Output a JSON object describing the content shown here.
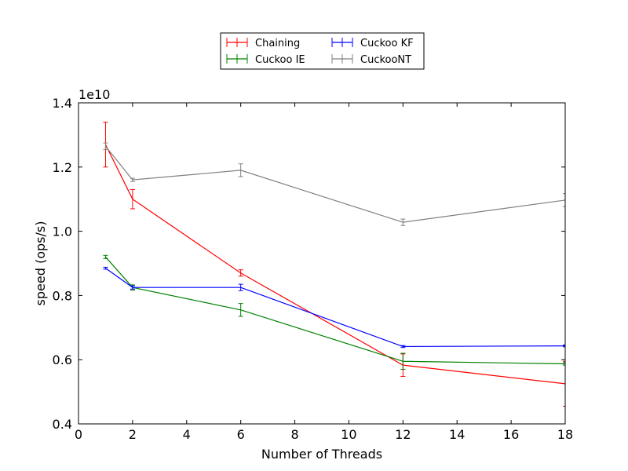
{
  "chart_data": {
    "type": "line",
    "title": "",
    "xlabel": "Number of Threads",
    "ylabel": "speed (ops/s)",
    "y_offset_label": "1e10",
    "y_scale": 10000000000,
    "xlim": [
      0,
      18
    ],
    "ylim": [
      0.4,
      1.4
    ],
    "x_ticks": [
      0,
      2,
      4,
      6,
      8,
      10,
      12,
      14,
      16,
      18
    ],
    "x_tick_labels": [
      "0",
      "2",
      "4",
      "6",
      "8",
      "10",
      "12",
      "14",
      "16",
      "18"
    ],
    "y_ticks": [
      0.4,
      0.6,
      0.8,
      1.0,
      1.2,
      1.4
    ],
    "y_tick_labels": [
      "0.4",
      "0.6",
      "0.8",
      "1.0",
      "1.2",
      "1.4"
    ],
    "grid": false,
    "legend_position": "top-center",
    "series": [
      {
        "name": "Chaining",
        "color": "#ff0000",
        "x": [
          1,
          2,
          6,
          12,
          18
        ],
        "y": [
          1.27,
          1.1,
          0.87,
          0.583,
          0.525
        ],
        "err": [
          0.07,
          0.03,
          0.01,
          0.035,
          0.07
        ]
      },
      {
        "name": "Cuckoo IE",
        "color": "#008000",
        "x": [
          1,
          2,
          6,
          12,
          18
        ],
        "y": [
          0.92,
          0.825,
          0.755,
          0.595,
          0.587
        ],
        "err": [
          0.005,
          0.008,
          0.02,
          0.025,
          0.004
        ]
      },
      {
        "name": "Cuckoo KF",
        "color": "#0000ff",
        "x": [
          1,
          2,
          6,
          12,
          18
        ],
        "y": [
          0.885,
          0.825,
          0.825,
          0.641,
          0.643
        ],
        "err": [
          0.003,
          0.005,
          0.01,
          0.003,
          0.003
        ]
      },
      {
        "name": "CuckooNT",
        "color": "#808080",
        "x": [
          1,
          2,
          6,
          12,
          18
        ],
        "y": [
          1.265,
          1.16,
          1.19,
          1.028,
          1.097
        ],
        "err": [
          0.01,
          0.005,
          0.02,
          0.01,
          0.02
        ]
      }
    ]
  }
}
